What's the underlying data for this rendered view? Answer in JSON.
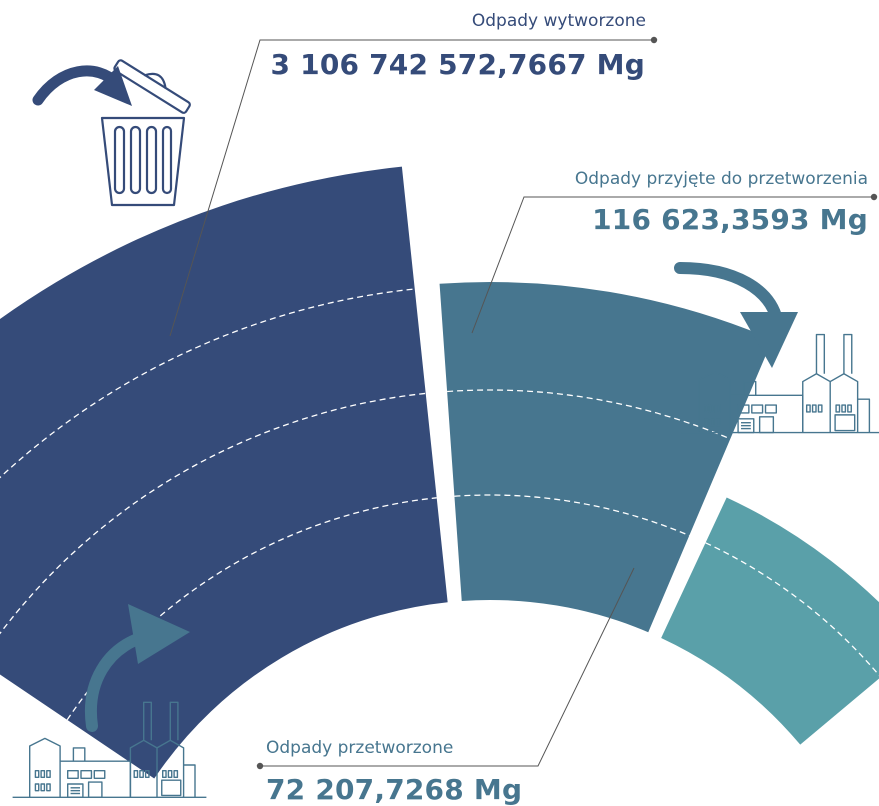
{
  "chart_data": {
    "type": "radial-bar",
    "series": [
      {
        "name": "Odpady wytworzone",
        "value_text": "3 106 742 572,7667 Mg",
        "value": 3106742572.7667,
        "unit": "Mg",
        "color": "#354b79"
      },
      {
        "name": "Odpady przyjęte do przetworzenia",
        "value_text": "116 623,3593 Mg",
        "value": 116623.3593,
        "unit": "Mg",
        "color": "#47768f"
      },
      {
        "name": "Odpady przetworzone",
        "value_text": "72 207,7268 Mg",
        "value": 72207.7268,
        "unit": "Mg",
        "color": "#5aa0a9"
      }
    ]
  },
  "icons": [
    "trash-bin-icon",
    "factory-icon",
    "factory-icon",
    "arrow-icon"
  ],
  "colors": {
    "leader": "#555555",
    "divider": "#ffffff",
    "arrow": "#354b79",
    "arrow_alt": "#47768f",
    "factory_line": "#47768f"
  }
}
